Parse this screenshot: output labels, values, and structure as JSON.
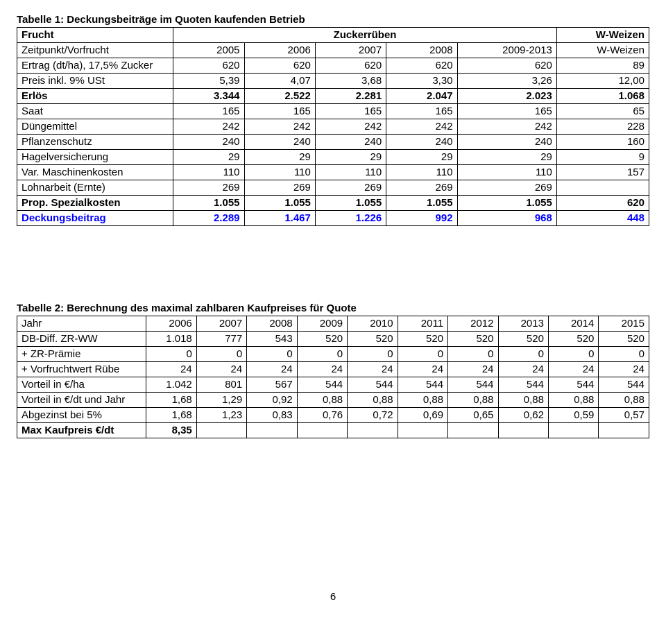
{
  "table1": {
    "title": "Tabelle 1: Deckungsbeiträge im Quoten kaufenden Betrieb",
    "head1": {
      "c0": "Frucht",
      "c1_5": "Zuckerrüben",
      "c6": "W-Weizen"
    },
    "head2": {
      "c0": "Zeitpunkt/Vorfrucht",
      "c1": "2005",
      "c2": "2006",
      "c3": "2007",
      "c4": "2008",
      "c5": "2009-2013",
      "c6": "W-Weizen"
    },
    "rows": [
      {
        "l": "Ertrag (dt/ha), 17,5% Zucker",
        "v": [
          "620",
          "620",
          "620",
          "620",
          "620",
          "89"
        ]
      },
      {
        "l": "Preis inkl. 9% USt",
        "v": [
          "5,39",
          "4,07",
          "3,68",
          "3,30",
          "3,26",
          "12,00"
        ]
      },
      {
        "l": "Erlös",
        "v": [
          "3.344",
          "2.522",
          "2.281",
          "2.047",
          "2.023",
          "1.068"
        ],
        "bold": true
      },
      {
        "l": "Saat",
        "v": [
          "165",
          "165",
          "165",
          "165",
          "165",
          "65"
        ]
      },
      {
        "l": "Düngemittel",
        "v": [
          "242",
          "242",
          "242",
          "242",
          "242",
          "228"
        ]
      },
      {
        "l": "Pflanzenschutz",
        "v": [
          "240",
          "240",
          "240",
          "240",
          "240",
          "160"
        ]
      },
      {
        "l": "Hagelversicherung",
        "v": [
          "29",
          "29",
          "29",
          "29",
          "29",
          "9"
        ]
      },
      {
        "l": "Var. Maschinenkosten",
        "v": [
          "110",
          "110",
          "110",
          "110",
          "110",
          "157"
        ]
      },
      {
        "l": "Lohnarbeit (Ernte)",
        "v": [
          "269",
          "269",
          "269",
          "269",
          "269",
          ""
        ]
      },
      {
        "l": "Prop. Spezialkosten",
        "v": [
          "1.055",
          "1.055",
          "1.055",
          "1.055",
          "1.055",
          "620"
        ],
        "bold": true
      },
      {
        "l": "Deckungsbeitrag",
        "v": [
          "2.289",
          "1.467",
          "1.226",
          "992",
          "968",
          "448"
        ],
        "bold": true,
        "blue": true
      }
    ]
  },
  "table2": {
    "title": "Tabelle 2: Berechnung des maximal zahlbaren Kaufpreises für Quote",
    "head": {
      "c0": "Jahr",
      "v": [
        "2006",
        "2007",
        "2008",
        "2009",
        "2010",
        "2011",
        "2012",
        "2013",
        "2014",
        "2015"
      ]
    },
    "rows": [
      {
        "l": "DB-Diff. ZR-WW",
        "v": [
          "1.018",
          "777",
          "543",
          "520",
          "520",
          "520",
          "520",
          "520",
          "520",
          "520"
        ]
      },
      {
        "l": "+ ZR-Prämie",
        "v": [
          "0",
          "0",
          "0",
          "0",
          "0",
          "0",
          "0",
          "0",
          "0",
          "0"
        ]
      },
      {
        "l": "+ Vorfruchtwert Rübe",
        "v": [
          "24",
          "24",
          "24",
          "24",
          "24",
          "24",
          "24",
          "24",
          "24",
          "24"
        ]
      },
      {
        "l": "Vorteil in €/ha",
        "v": [
          "1.042",
          "801",
          "567",
          "544",
          "544",
          "544",
          "544",
          "544",
          "544",
          "544"
        ]
      },
      {
        "l": "Vorteil in €/dt und Jahr",
        "v": [
          "1,68",
          "1,29",
          "0,92",
          "0,88",
          "0,88",
          "0,88",
          "0,88",
          "0,88",
          "0,88",
          "0,88"
        ]
      },
      {
        "l": "Abgezinst bei 5%",
        "v": [
          "1,68",
          "1,23",
          "0,83",
          "0,76",
          "0,72",
          "0,69",
          "0,65",
          "0,62",
          "0,59",
          "0,57"
        ]
      },
      {
        "l": "Max Kaufpreis €/dt",
        "v": [
          "8,35",
          "",
          "",
          "",
          "",
          "",
          "",
          "",
          "",
          ""
        ],
        "bold": true
      }
    ]
  },
  "pageNumber": "6"
}
